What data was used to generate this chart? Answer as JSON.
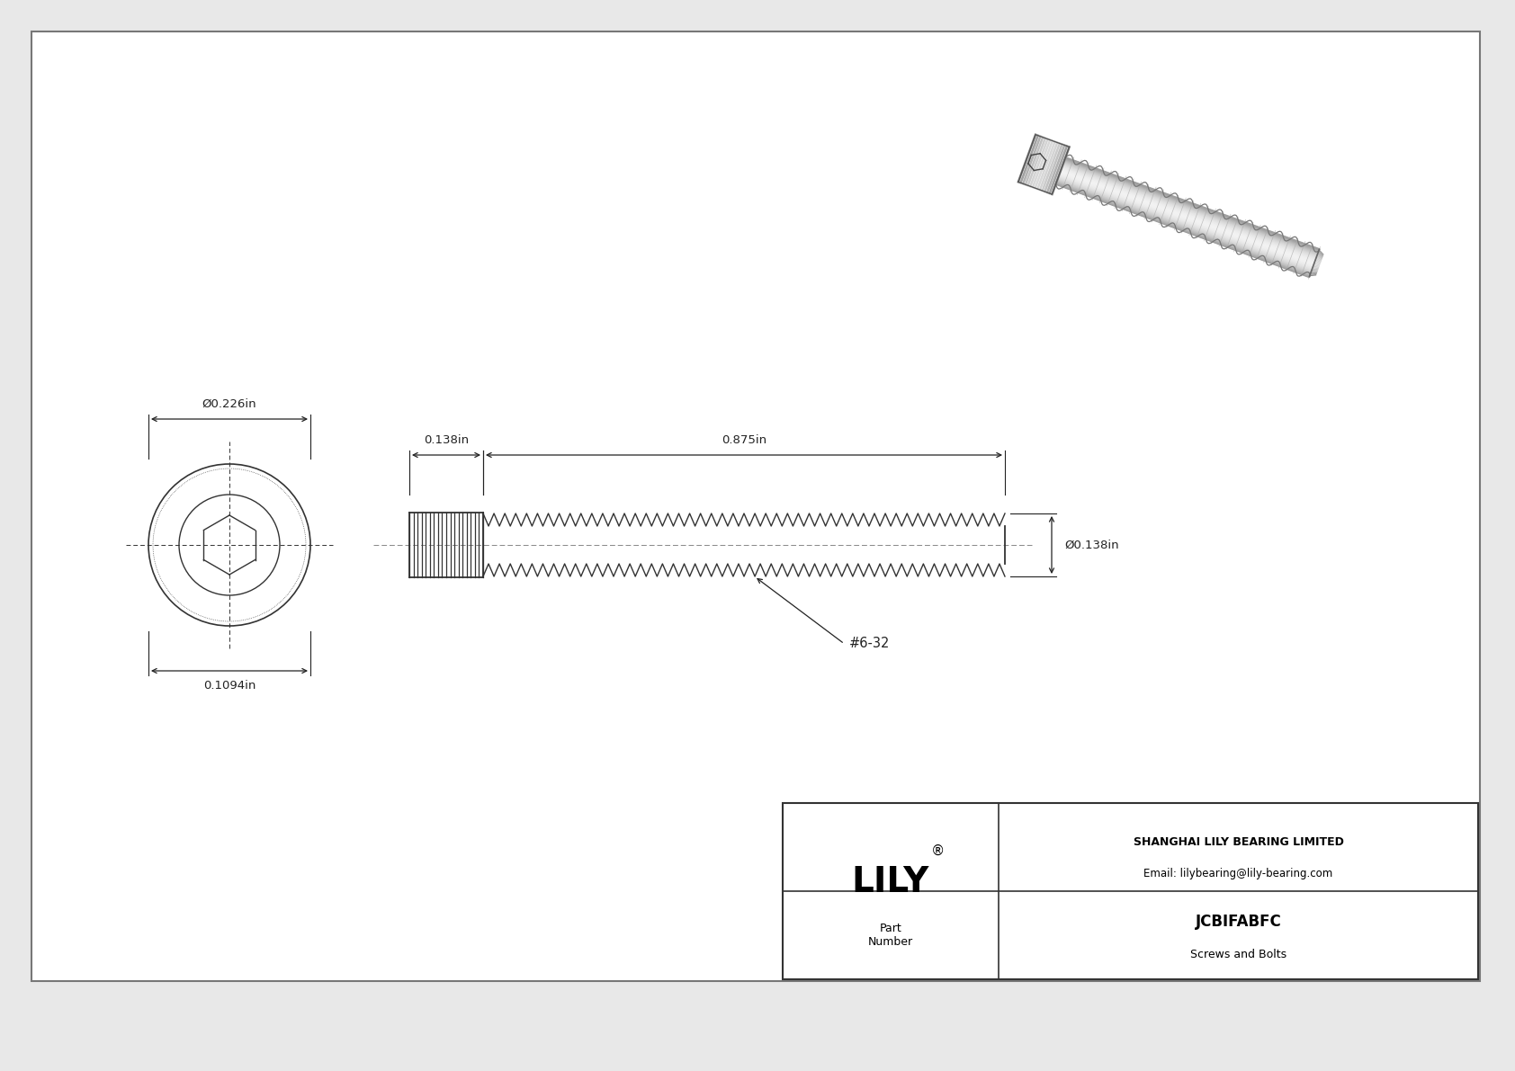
{
  "bg_color": "#e8e8e8",
  "drawing_bg": "#f5f5f5",
  "border_color": "#888888",
  "line_color": "#333333",
  "dim_color": "#222222",
  "title": "JCBIFABFC",
  "subtitle": "Screws and Bolts",
  "company": "SHANGHAI LILY BEARING LIMITED",
  "email": "Email: lilybearing@lily-bearing.com",
  "part_label": "Part\nNumber",
  "logo": "LILY",
  "logo_reg": "®",
  "dim_head_outer_dia": "Ø0.226in",
  "dim_head_length": "0.1094in",
  "dim_shaft_length": "0.875in",
  "dim_shaft_dia_label": "0.138in",
  "dim_shaft_dia_side": "Ø0.138in",
  "dim_head_side": "0.138in",
  "thread_label": "#6-32"
}
